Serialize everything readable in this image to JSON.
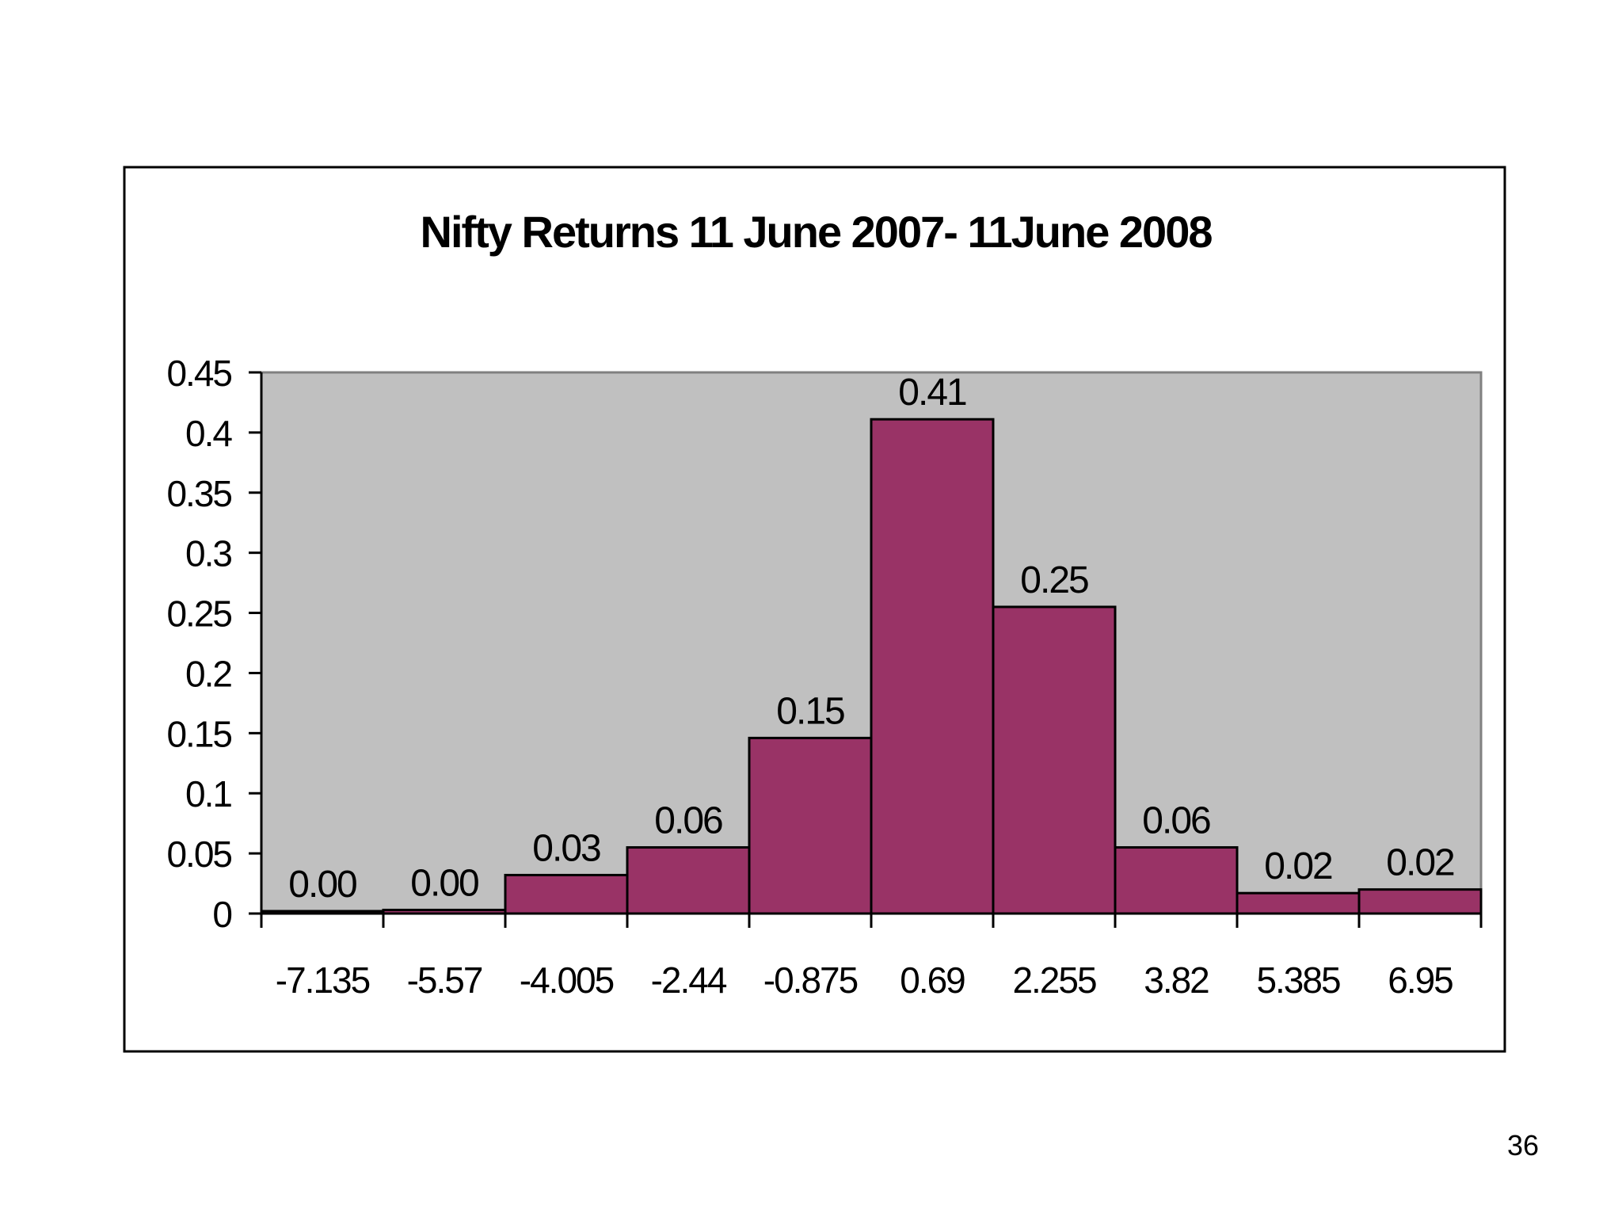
{
  "page_number": "36",
  "chart_data": {
    "type": "bar",
    "title": "Nifty Returns 11 June 2007- 11June 2008",
    "categories": [
      "-7.135",
      "-5.57",
      "-4.005",
      "-2.44",
      "-0.875",
      "0.69",
      "2.255",
      "3.82",
      "5.385",
      "6.95"
    ],
    "values": [
      0.002,
      0.003,
      0.032,
      0.055,
      0.146,
      0.411,
      0.255,
      0.055,
      0.017,
      0.02
    ],
    "data_labels": [
      "0.00",
      "0.00",
      "0.03",
      "0.06",
      "0.15",
      "0.41",
      "0.25",
      "0.06",
      "0.02",
      "0.02"
    ],
    "ylim": [
      0,
      0.45
    ],
    "yticks": [
      "0",
      "0.05",
      "0.1",
      "0.15",
      "0.2",
      "0.25",
      "0.3",
      "0.35",
      "0.4",
      "0.45"
    ],
    "xlabel": "",
    "ylabel": "",
    "grid": false,
    "colors": {
      "bar": "#993366",
      "plot_area": "#c0c0c0",
      "border": "#000000"
    }
  }
}
